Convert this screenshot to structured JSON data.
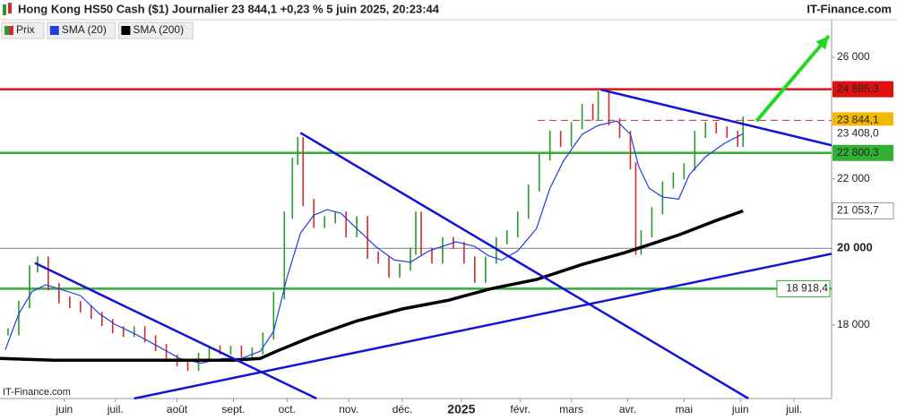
{
  "header": {
    "title": "Hong Kong HS50 Cash ($1) Journalier 23 844,1 +0,23 % 5 juin 2025, 20:23:44",
    "brand": "IT-Finance.com"
  },
  "watermark": "IT-Finance.com",
  "chart_data": {
    "type": "price",
    "log_scale": true,
    "xlim": [
      0,
      310
    ],
    "ylim": [
      16270,
      27380
    ],
    "xticks": [
      {
        "value": 24,
        "label": "juin"
      },
      {
        "value": 43,
        "label": "juil."
      },
      {
        "value": 66,
        "label": "août"
      },
      {
        "value": 87,
        "label": "sept."
      },
      {
        "value": 107,
        "label": "oct."
      },
      {
        "value": 130,
        "label": "nov."
      },
      {
        "value": 150,
        "label": "déc."
      },
      {
        "value": 172,
        "label": "2025"
      },
      {
        "value": 194,
        "label": "févr."
      },
      {
        "value": 213,
        "label": "mars"
      },
      {
        "value": 234,
        "label": "avr."
      },
      {
        "value": 255,
        "label": "mai"
      },
      {
        "value": 276,
        "label": "juin"
      },
      {
        "value": 296,
        "label": "juil."
      }
    ],
    "yticks": [
      {
        "value": 18000,
        "label": "18 000"
      },
      {
        "value": 22000,
        "label": "22 000"
      },
      {
        "value": 26000,
        "label": "26 000"
      }
    ],
    "series": [
      {
        "name": "Prix",
        "color": "#d42a2a",
        "up_color": "#2a9a2a",
        "x": [
          3,
          7,
          11,
          14,
          18,
          22,
          26,
          30,
          34,
          38,
          42,
          46,
          50,
          54,
          58,
          62,
          66,
          70,
          74,
          78,
          82,
          86,
          90,
          94,
          98,
          102,
          106,
          109,
          111,
          113,
          117,
          121,
          125,
          129,
          133,
          137,
          141,
          145,
          149,
          153,
          155,
          157,
          161,
          165,
          169,
          173,
          177,
          181,
          185,
          189,
          193,
          197,
          201,
          205,
          209,
          213,
          217,
          221,
          223,
          227,
          231,
          235,
          237,
          239,
          243,
          247,
          251,
          255,
          259,
          263,
          267,
          271,
          275,
          277
        ],
        "values": [
          17830,
          18510,
          19440,
          19680,
          18970,
          18630,
          18510,
          18400,
          18240,
          18060,
          17880,
          17790,
          17880,
          17660,
          17450,
          17190,
          17090,
          16980,
          17240,
          17410,
          17370,
          17410,
          17300,
          17370,
          17730,
          18740,
          20930,
          22540,
          23190,
          21300,
          20670,
          20800,
          20930,
          20400,
          20800,
          19810,
          19680,
          19300,
          19490,
          19920,
          20930,
          19920,
          19680,
          20210,
          20080,
          19680,
          19170,
          19680,
          20210,
          20400,
          20930,
          21730,
          22680,
          23390,
          23100,
          23670,
          24270,
          23960,
          24700,
          23790,
          23390,
          22400,
          19920,
          20400,
          21060,
          21820,
          22090,
          22370,
          23390,
          23670,
          23530,
          23390,
          23100,
          23844.1
        ]
      },
      {
        "name": "SMA (20)",
        "color": "#1f3fe0",
        "x": [
          2,
          7,
          12,
          17,
          22,
          30,
          37,
          43,
          50,
          58,
          67,
          75,
          83,
          90,
          97,
          102,
          107,
          112,
          117,
          122,
          127,
          133,
          140,
          147,
          153,
          160,
          170,
          177,
          182,
          187,
          193,
          200,
          205,
          210,
          217,
          223,
          230,
          235,
          238,
          242,
          247,
          253,
          257,
          263,
          270,
          277
        ],
        "values": [
          17400,
          18280,
          18850,
          19020,
          18920,
          18740,
          18280,
          18010,
          17790,
          17510,
          17190,
          17080,
          17190,
          17190,
          17360,
          17840,
          19210,
          20420,
          20930,
          21090,
          20990,
          20550,
          20050,
          19680,
          19620,
          19930,
          20180,
          20050,
          19800,
          19680,
          19930,
          20550,
          21720,
          22540,
          23390,
          23680,
          23820,
          23390,
          22400,
          21720,
          21460,
          21400,
          22130,
          22680,
          23100,
          23408
        ]
      },
      {
        "name": "SMA (200)",
        "color": "#000000",
        "x": [
          0,
          20,
          40,
          67,
          87,
          97,
          103,
          117,
          133,
          150,
          167,
          183,
          200,
          217,
          233,
          240,
          253,
          267,
          277
        ],
        "values": [
          17190,
          17150,
          17150,
          17150,
          17150,
          17190,
          17360,
          17730,
          18100,
          18400,
          18620,
          18920,
          19160,
          19560,
          19880,
          20050,
          20370,
          20780,
          21053.7
        ]
      }
    ],
    "levels": [
      {
        "value": 24885.3,
        "label": "24 885,3",
        "color": "#e01010"
      },
      {
        "value": 22800.3,
        "label": "22 800,3",
        "color": "#33b033"
      },
      {
        "value": 18918.4,
        "label": "18 918,4",
        "color": "#33b033"
      },
      {
        "value": 20000,
        "label": "20 000",
        "color": "#808080",
        "bold": true
      }
    ],
    "last_labels": [
      {
        "value": 23844.1,
        "label": "23 844,1",
        "color": "#f5b800"
      },
      {
        "value": 23408,
        "label": "23 408,0",
        "color": "#1f3fe0"
      },
      {
        "value": 21053.7,
        "label": "21 053,7",
        "color": "#000000"
      }
    ],
    "trendlines": [
      {
        "x": [
          13,
          118
        ],
        "y": [
          19600,
          16270
        ],
        "color": "#1414d8"
      },
      {
        "x": [
          112,
          279
        ],
        "y": [
          23440,
          16270
        ],
        "color": "#1414d8"
      },
      {
        "x": [
          224,
          310
        ],
        "y": [
          24870,
          23040
        ],
        "color": "#1414d8"
      },
      {
        "x": [
          50,
          310
        ],
        "y": [
          16270,
          19850
        ],
        "color": "#1414d8"
      }
    ],
    "arrow": {
      "x": [
        282,
        309
      ],
      "y": [
        23820,
        26780
      ],
      "color": "#22d822"
    }
  }
}
